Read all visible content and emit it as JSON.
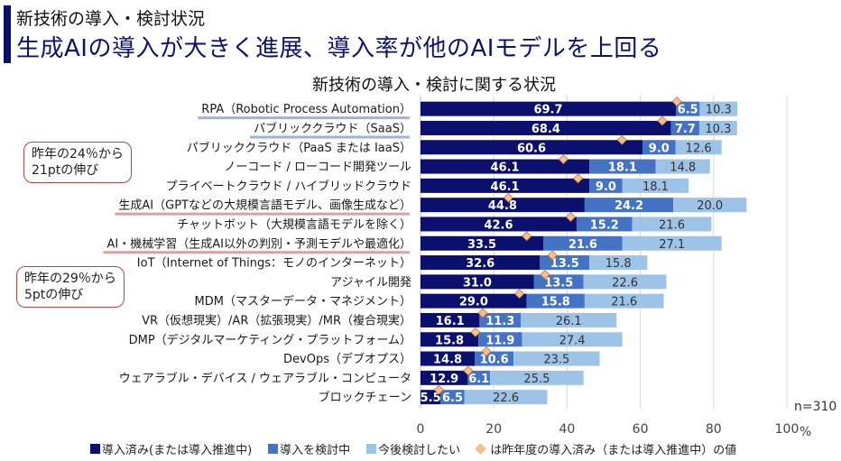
{
  "header": {
    "kicker": "新技術の導入・検討状況",
    "headline": "生成AIの導入が大きく進展、導入率が他のAIモデルを上回る"
  },
  "callouts": [
    {
      "text_line1": "昨年の24％から",
      "text_line2": "21ptの伸び"
    },
    {
      "text_line1": "昨年の29％から",
      "text_line2": "5ptの伸び"
    }
  ],
  "sample_size": "n=310",
  "colors": {
    "adopted": "#0b0f6e",
    "considering": "#4472c4",
    "future": "#9dc3e6",
    "last_year": "#f5c08a",
    "highlight_blue": "#9db3dd",
    "highlight_red": "#d9a1a6"
  },
  "legend": [
    {
      "label": "導入済み(または導入推進中)",
      "kind": "adopted"
    },
    {
      "label": "導入を検討中",
      "kind": "considering"
    },
    {
      "label": "今後検討したい",
      "kind": "future"
    },
    {
      "label": "は昨年度の導入済み（または導入推進中）の値",
      "kind": "last_year"
    }
  ],
  "chart_data": {
    "type": "bar",
    "orientation": "horizontal",
    "stacked": true,
    "title": "新技術の導入・検討に関する状況",
    "xlabel": "%",
    "xlim": [
      0,
      100
    ],
    "xticks": [
      0,
      20,
      40,
      60,
      80,
      100
    ],
    "grid": true,
    "legend_position": "bottom",
    "categories": [
      "RPA（Robotic Process Automation）",
      "パブリッククラウド（SaaS）",
      "パブリッククラウド（PaaS または IaaS）",
      "ノーコード / ローコード開発ツール",
      "プライベートクラウド / ハイブリッドクラウド",
      "生成AI（GPTなどの大規模言語モデル、画像生成など）",
      "チャットボット（大規模言語モデルを除く）",
      "AI・機械学習（生成AI以外の判別・予測モデルや最適化）",
      "IoT（Internet of Things：モノのインターネット）",
      "アジャイル開発",
      "MDM（マスターデータ・マネジメント）",
      "VR（仮想現実）/AR（拡張現実）/MR（複合現実）",
      "DMP（デジタルマーケティング・プラットフォーム）",
      "DevOps（デブオプス）",
      "ウェアラブル・デバイス / ウェアラブル・コンピュータ",
      "ブロックチェーン"
    ],
    "highlight": [
      "blue",
      "blue",
      "",
      "",
      "",
      "red",
      "",
      "red",
      "",
      "",
      "",
      "",
      "",
      "",
      "",
      ""
    ],
    "series": [
      {
        "name": "導入済み(または導入推進中)",
        "values": [
          69.7,
          68.4,
          60.6,
          46.1,
          46.1,
          44.8,
          42.6,
          33.5,
          32.6,
          31.0,
          29.0,
          16.1,
          15.8,
          14.8,
          12.9,
          5.5
        ]
      },
      {
        "name": "導入を検討中",
        "values": [
          6.5,
          7.7,
          9.0,
          18.1,
          9.0,
          24.2,
          15.2,
          21.6,
          13.5,
          13.5,
          15.8,
          11.3,
          11.9,
          10.6,
          6.1,
          6.5
        ]
      },
      {
        "name": "今後検討したい",
        "values": [
          10.3,
          10.3,
          12.6,
          14.8,
          18.1,
          20.0,
          21.6,
          27.1,
          15.8,
          22.6,
          21.6,
          26.1,
          27.4,
          23.5,
          25.5,
          22.6
        ]
      }
    ],
    "last_year": {
      "name": "昨年度の導入済み（または導入推進中）の値",
      "values": [
        70,
        66,
        55,
        39,
        43,
        24,
        41,
        29,
        36,
        34,
        27,
        17,
        15,
        18,
        13,
        5
      ]
    }
  }
}
